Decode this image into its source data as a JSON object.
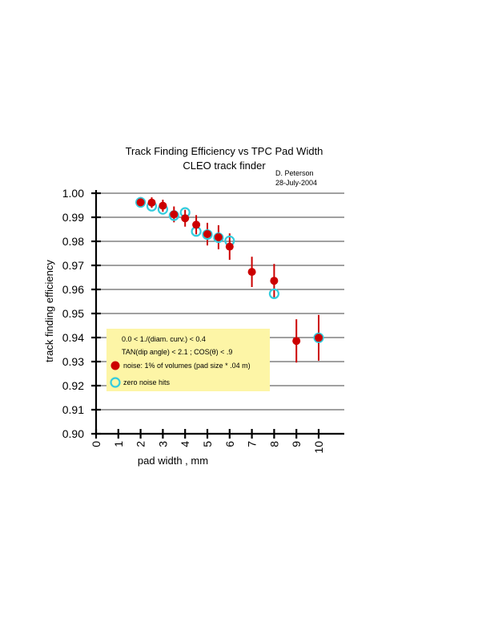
{
  "chart_data": {
    "type": "scatter",
    "title": "Track Finding Efficiency vs TPC Pad Width",
    "subtitle": "CLEO track finder",
    "author": "D. Peterson",
    "date": "28-July-2004",
    "xlabel": "pad width , mm",
    "ylabel": "track finding efficiency",
    "xlim": [
      0,
      11
    ],
    "ylim": [
      0.9,
      1.0
    ],
    "x_ticks": [
      0,
      1,
      2,
      3,
      4,
      5,
      6,
      7,
      8,
      9,
      10
    ],
    "y_ticks": [
      "0.90",
      "0.91",
      "0.92",
      "0.93",
      "0.94",
      "0.95",
      "0.96",
      "0.97",
      "0.98",
      "0.99",
      "1.00"
    ],
    "grid": "horizontal",
    "legend": {
      "placement": "lower-left",
      "background": "#fdf5a6",
      "lines": [
        "0.0 < 1./(diam. curv.) < 0.4",
        "TAN(dip angle) < 2.1 ; COS(θ) < .9"
      ],
      "entries": [
        "noise: 1% of volumes (pad size * .04 m)",
        "zero noise hits"
      ]
    },
    "series": [
      {
        "name": "noise: 1% of volumes (pad size * .04 m)",
        "marker": "filled-circle",
        "color": "#cc0000",
        "x": [
          2,
          2.5,
          3,
          3.5,
          4,
          4.5,
          5,
          5.5,
          6,
          7,
          8,
          9,
          10
        ],
        "y": [
          0.9962,
          0.9961,
          0.9948,
          0.9912,
          0.9896,
          0.9869,
          0.983,
          0.9817,
          0.9778,
          0.9673,
          0.9636,
          0.9386,
          0.9399
        ],
        "err": [
          0.0022,
          0.0022,
          0.0025,
          0.0033,
          0.0035,
          0.004,
          0.0047,
          0.005,
          0.0055,
          0.0063,
          0.007,
          0.009,
          0.0095
        ]
      },
      {
        "name": "zero noise hits",
        "marker": "open-circle",
        "color": "#33ccdd",
        "x": [
          2,
          2.5,
          3,
          3.5,
          4,
          4.5,
          5,
          5.5,
          6,
          8,
          10
        ],
        "y": [
          0.9962,
          0.9946,
          0.9933,
          0.9907,
          0.992,
          0.9841,
          0.9828,
          0.9815,
          0.9802,
          0.9582,
          0.9399
        ]
      }
    ]
  }
}
